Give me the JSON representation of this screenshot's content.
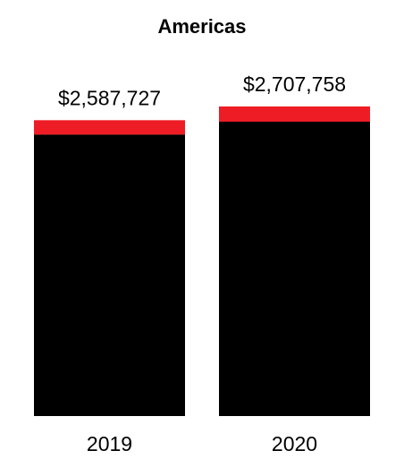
{
  "chart_data": {
    "type": "stacked_bar",
    "title": "Americas",
    "categories": [
      "2019",
      "2020"
    ],
    "series": [
      {
        "color": "#000000",
        "values": [
          2461727,
          2574758
        ]
      },
      {
        "color": "#ee1c25",
        "values": [
          126000,
          133000
        ]
      }
    ],
    "totals": [
      2587727,
      2707758
    ],
    "total_labels": [
      "$2,587,727",
      "$2,707,758"
    ]
  }
}
